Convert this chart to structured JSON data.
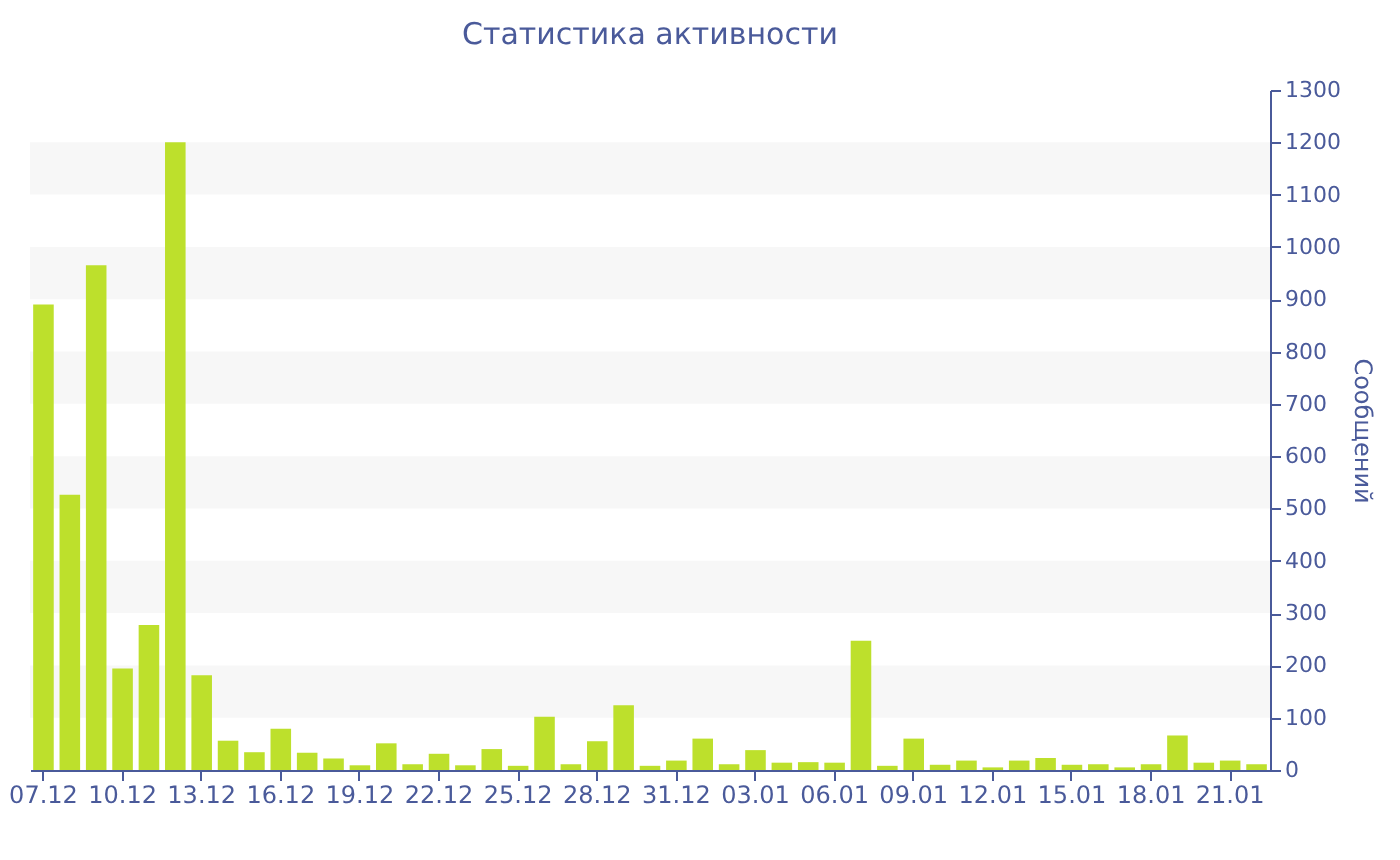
{
  "chart_data": {
    "type": "bar",
    "title": "Статистика активности",
    "ylabel": "Сообщений",
    "categories": [
      "07.12",
      null,
      null,
      "10.12",
      null,
      null,
      "13.12",
      null,
      null,
      "16.12",
      null,
      null,
      "19.12",
      null,
      null,
      "22.12",
      null,
      null,
      "25.12",
      null,
      null,
      "28.12",
      null,
      null,
      "31.12",
      null,
      null,
      "03.01",
      null,
      null,
      "06.01",
      null,
      null,
      "09.01",
      null,
      null,
      "12.01",
      null,
      null,
      "15.01",
      null,
      null,
      "18.01",
      null,
      null,
      "21.01",
      null
    ],
    "values": [
      890,
      526,
      965,
      194,
      277,
      1200,
      181,
      56,
      34,
      79,
      33,
      22,
      9,
      51,
      11,
      31,
      9,
      40,
      8,
      102,
      11,
      55,
      124,
      8,
      18,
      60,
      11,
      38,
      14,
      15,
      14,
      247,
      8,
      60,
      10,
      18,
      5,
      18,
      23,
      10,
      11,
      5,
      11,
      66,
      14,
      18,
      11
    ],
    "color": "#bde02c",
    "ylim": [
      0,
      1300
    ],
    "yticks": [
      0,
      100,
      200,
      300,
      400,
      500,
      600,
      700,
      800,
      900,
      1000,
      1100,
      1200,
      1300
    ],
    "bands": [
      {
        "axis": "y",
        "from": 100,
        "to": 200,
        "color": "#f7f7f7"
      },
      {
        "axis": "y",
        "from": 300,
        "to": 400,
        "color": "#f7f7f7"
      },
      {
        "axis": "y",
        "from": 500,
        "to": 600,
        "color": "#f7f7f7"
      },
      {
        "axis": "y",
        "from": 700,
        "to": 800,
        "color": "#f7f7f7"
      },
      {
        "axis": "y",
        "from": 900,
        "to": 1000,
        "color": "#f7f7f7"
      },
      {
        "axis": "y",
        "from": 1100,
        "to": 1200,
        "color": "#f7f7f7"
      }
    ]
  }
}
